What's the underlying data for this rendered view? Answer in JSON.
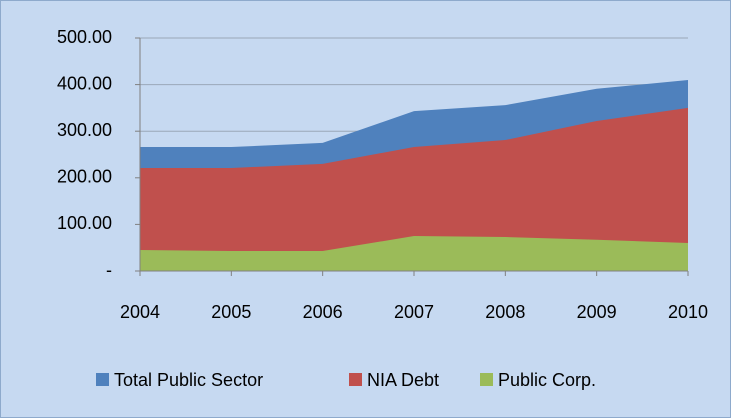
{
  "chart_data": {
    "type": "area",
    "categories": [
      "2004",
      "2005",
      "2006",
      "2007",
      "2008",
      "2009",
      "2010"
    ],
    "series": [
      {
        "name": "Total Public Sector",
        "color": "#4f81bd",
        "values": [
          266,
          266,
          275,
          343,
          356,
          391,
          410
        ]
      },
      {
        "name": "NIA Debt",
        "color": "#c0504d",
        "values": [
          221,
          221,
          230,
          266,
          281,
          322,
          350
        ]
      },
      {
        "name": "Public Corp.",
        "color": "#9bbb59",
        "values": [
          45,
          43,
          43,
          75,
          73,
          67,
          60
        ]
      }
    ],
    "ylim": [
      0,
      500
    ],
    "yticks": [
      {
        "value": 0,
        "label": "-"
      },
      {
        "value": 100,
        "label": "100.00"
      },
      {
        "value": 200,
        "label": "200.00"
      },
      {
        "value": 300,
        "label": "300.00"
      },
      {
        "value": 400,
        "label": "400.00"
      },
      {
        "value": 500,
        "label": "500.00"
      }
    ],
    "grid": true,
    "legend": "bottom"
  }
}
